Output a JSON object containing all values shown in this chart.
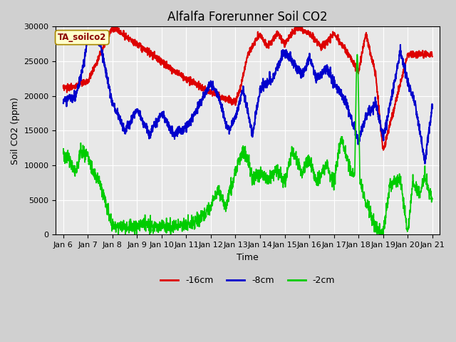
{
  "title": "Alfalfa Forerunner Soil CO2",
  "xlabel": "Time",
  "ylabel": "Soil CO2 (ppm)",
  "ylim": [
    0,
    30000
  ],
  "fig_bg_color": "#d0d0d0",
  "plot_bg_color": "#e8e8e8",
  "legend_label": "TA_soilco2",
  "series": {
    "red": {
      "label": "-16cm",
      "color": "#dd0000",
      "lw": 1.5
    },
    "blue": {
      "label": "-8cm",
      "color": "#0000cc",
      "lw": 1.5
    },
    "green": {
      "label": "-2cm",
      "color": "#00cc00",
      "lw": 1.2
    }
  },
  "x_tick_labels": [
    "Jan 6",
    "Jan 7",
    "Jan 8",
    "Jan 9",
    "Jan 10",
    "Jan 11",
    "Jan 12",
    "Jan 13",
    "Jan 14",
    "Jan 15",
    "Jan 16",
    "Jan 17",
    "Jan 18",
    "Jan 19",
    "Jan 20",
    "Jan 21"
  ],
  "x_tick_positions": [
    0,
    1,
    2,
    3,
    4,
    5,
    6,
    7,
    8,
    9,
    10,
    11,
    12,
    13,
    14,
    15
  ],
  "title_fontsize": 12,
  "axis_label_fontsize": 9,
  "tick_fontsize": 8
}
